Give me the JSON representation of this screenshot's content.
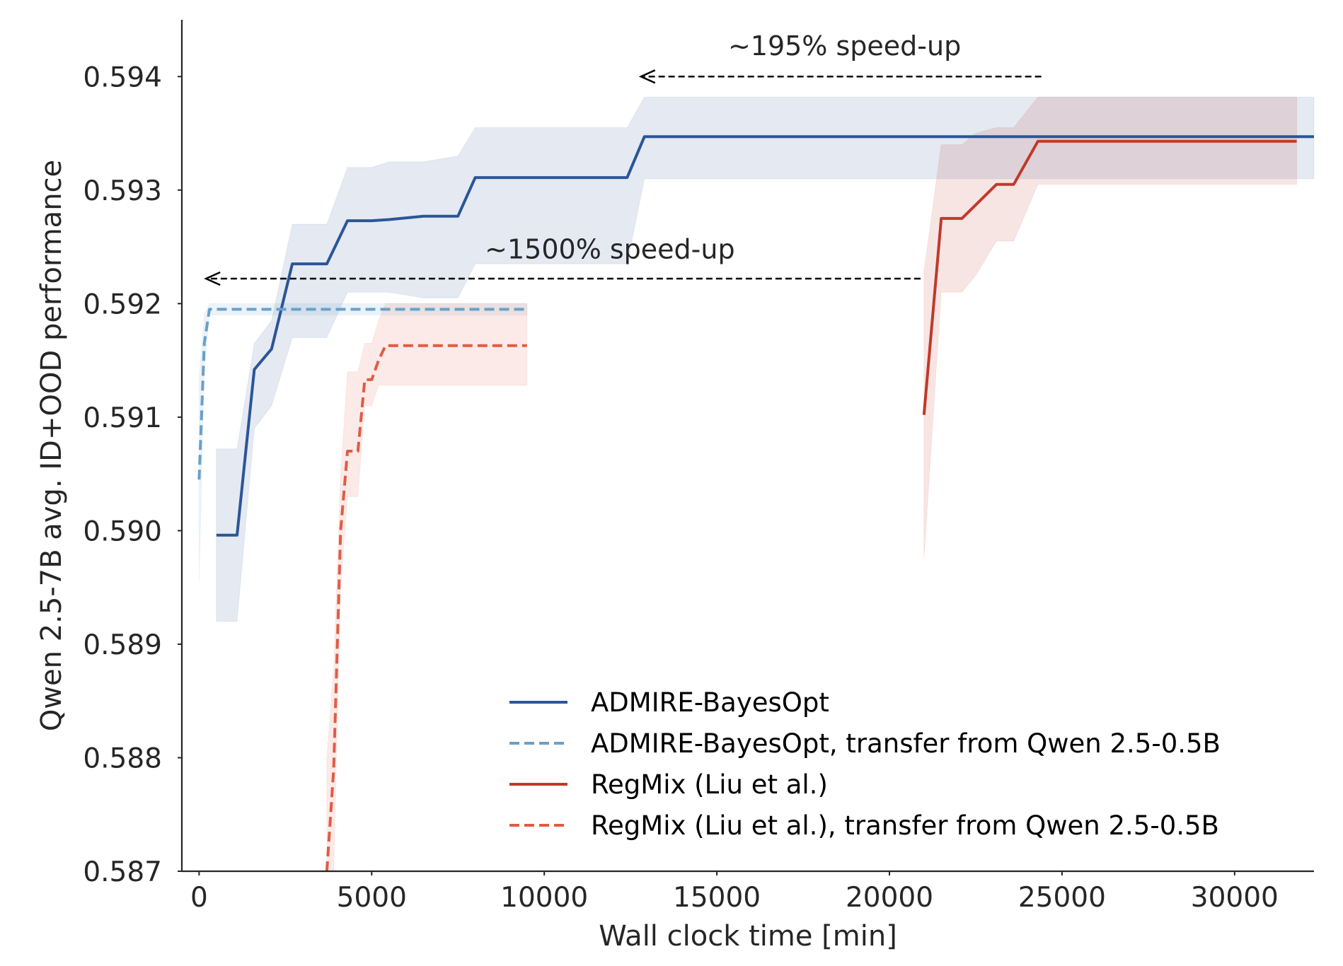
{
  "chart_data": {
    "type": "line",
    "title": "",
    "xlabel": "Wall clock time [min]",
    "ylabel": "Qwen 2.5-7B avg. ID+OOD performance",
    "xlim": [
      -500,
      32300
    ],
    "ylim": [
      0.587,
      0.5945
    ],
    "xticks": [
      0,
      5000,
      10000,
      15000,
      20000,
      25000,
      30000
    ],
    "xtick_labels": [
      "0",
      "5000",
      "10000",
      "15000",
      "20000",
      "25000",
      "30000"
    ],
    "yticks": [
      0.587,
      0.588,
      0.589,
      0.59,
      0.591,
      0.592,
      0.593,
      0.594
    ],
    "ytick_labels": [
      "0.587",
      "0.588",
      "0.589",
      "0.590",
      "0.591",
      "0.592",
      "0.593",
      "0.594"
    ],
    "grid": false,
    "legend_position": "lower-right",
    "series": [
      {
        "name": "ADMIRE-BayesOpt",
        "color": "#2b5597",
        "dash": "solid",
        "x": [
          500,
          1100,
          1600,
          2100,
          2700,
          3700,
          4300,
          5000,
          5500,
          6500,
          7500,
          8000,
          12400,
          12900,
          32300
        ],
        "y": [
          0.58996,
          0.58996,
          0.59142,
          0.5916,
          0.59235,
          0.59235,
          0.59273,
          0.59273,
          0.59274,
          0.59277,
          0.59277,
          0.59311,
          0.59311,
          0.59347,
          0.59347
        ],
        "lower": [
          0.5892,
          0.5892,
          0.5909,
          0.5911,
          0.5917,
          0.5917,
          0.5921,
          0.5921,
          0.5921,
          0.59205,
          0.59205,
          0.59235,
          0.59235,
          0.5931,
          0.5931
        ],
        "upper": [
          0.59072,
          0.59072,
          0.59165,
          0.59185,
          0.5927,
          0.5927,
          0.5932,
          0.5932,
          0.59325,
          0.59325,
          0.5933,
          0.59355,
          0.59355,
          0.59382,
          0.59382
        ]
      },
      {
        "name": "ADMIRE-BayesOpt, transfer from Qwen 2.5-0.5B",
        "color": "#6aa0c9",
        "dash": "dashed",
        "x": [
          0,
          150,
          300,
          9500
        ],
        "y": [
          0.59045,
          0.59165,
          0.59195,
          0.59195
        ],
        "lower": [
          0.58955,
          0.5914,
          0.5919,
          0.5919
        ],
        "upper": [
          0.59135,
          0.5919,
          0.592,
          0.592
        ]
      },
      {
        "name": "RegMix (Liu et al.)",
        "color": "#c0392b",
        "dash": "solid",
        "x": [
          21000,
          21500,
          22100,
          22500,
          23100,
          23600,
          24300,
          31800
        ],
        "y": [
          0.59102,
          0.59275,
          0.59275,
          0.59287,
          0.59305,
          0.59305,
          0.59343,
          0.59343
        ],
        "lower": [
          0.58975,
          0.5921,
          0.5921,
          0.59225,
          0.59255,
          0.59255,
          0.59305,
          0.59305
        ],
        "upper": [
          0.59228,
          0.5934,
          0.5934,
          0.5935,
          0.59355,
          0.59355,
          0.59382,
          0.59382
        ]
      },
      {
        "name": "RegMix (Liu et al.), transfer from Qwen 2.5-0.5B",
        "color": "#e05c44",
        "dash": "dashed",
        "x": [
          3700,
          3900,
          4100,
          4300,
          4600,
          4800,
          5000,
          5200,
          5400,
          9500
        ],
        "y": [
          0.587,
          0.5879,
          0.59,
          0.5907,
          0.5907,
          0.59133,
          0.59133,
          0.5915,
          0.59163,
          0.59163
        ],
        "lower": [
          0.586,
          0.587,
          0.5895,
          0.5903,
          0.5903,
          0.5911,
          0.5911,
          0.59128,
          0.59128,
          0.59128
        ],
        "upper": [
          0.588,
          0.5888,
          0.5905,
          0.5914,
          0.5914,
          0.59165,
          0.59165,
          0.59185,
          0.592,
          0.592
        ]
      }
    ],
    "annotations": [
      {
        "text": "~195% speed-up",
        "arrow_from": [
          24400,
          0.594
        ],
        "arrow_to": [
          12800,
          0.594
        ],
        "text_at": [
          18700,
          0.59427
        ]
      },
      {
        "text": "~1500% speed-up",
        "arrow_from": [
          20900,
          0.59222
        ],
        "arrow_to": [
          200,
          0.59222
        ],
        "text_at": [
          11900,
          0.59248
        ]
      }
    ]
  }
}
